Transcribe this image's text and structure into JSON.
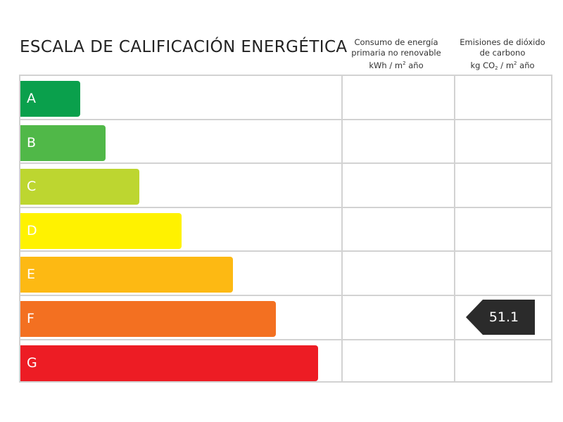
{
  "title": "ESCALA DE CALIFICACIÓN ENERGÉTICA",
  "columns": {
    "energy": {
      "line1": "Consumo de energía",
      "line2": "primaria no renovable",
      "unit_prefix": "kWh / m",
      "unit_sup": "2",
      "unit_suffix": " año"
    },
    "emissions": {
      "line1": "Emisiones de dióxido",
      "line2": "de carbono",
      "unit_a": "kg CO",
      "unit_sub": "2",
      "unit_b": " / m",
      "unit_sup": "2",
      "unit_suffix": " año"
    }
  },
  "ratings": [
    {
      "letter": "A",
      "color": "#0aa04c"
    },
    {
      "letter": "B",
      "color": "#50b848"
    },
    {
      "letter": "C",
      "color": "#bdd630"
    },
    {
      "letter": "D",
      "color": "#fff200"
    },
    {
      "letter": "E",
      "color": "#fdb913"
    },
    {
      "letter": "F",
      "color": "#f37021"
    },
    {
      "letter": "G",
      "color": "#ed1c24"
    }
  ],
  "consumption": {
    "rating": null,
    "value": null
  },
  "emissions": {
    "rating": "F",
    "value": "51.1"
  }
}
